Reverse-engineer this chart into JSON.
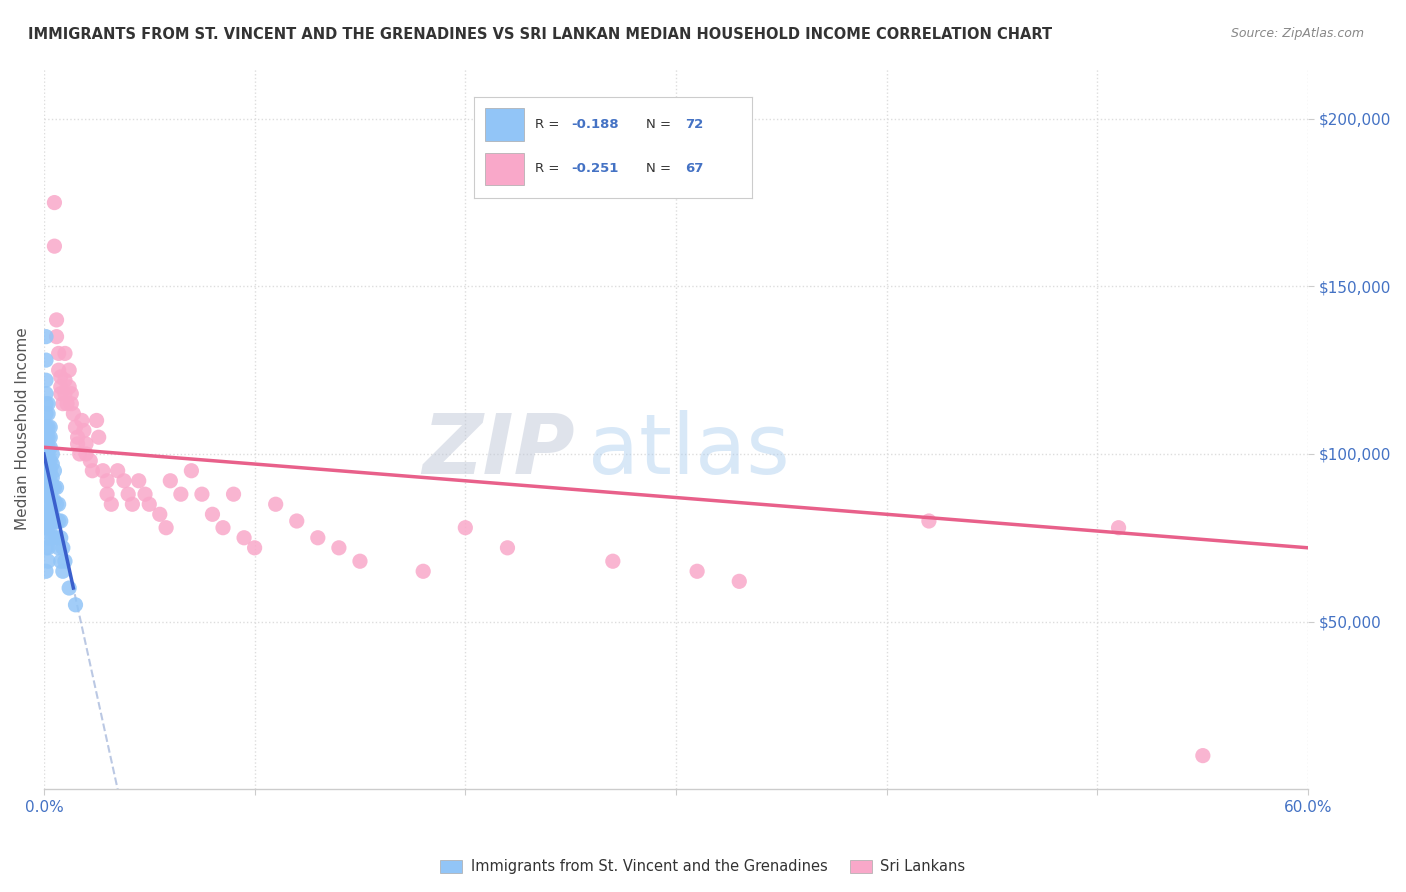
{
  "title": "IMMIGRANTS FROM ST. VINCENT AND THE GRENADINES VS SRI LANKAN MEDIAN HOUSEHOLD INCOME CORRELATION CHART",
  "source": "Source: ZipAtlas.com",
  "ylabel": "Median Household Income",
  "xlim": [
    0.0,
    0.6
  ],
  "ylim": [
    0,
    215000
  ],
  "R_blue": -0.188,
  "N_blue": 72,
  "R_pink": -0.251,
  "N_pink": 67,
  "blue_color": "#92C5F7",
  "blue_edge_color": "#6AAEE8",
  "pink_color": "#F9A8C9",
  "pink_edge_color": "#F080A8",
  "blue_line_color": "#3A5FCC",
  "pink_line_color": "#E8608A",
  "dashed_line_color": "#AABBDD",
  "background_color": "#FFFFFF",
  "grid_color": "#DDDDDD",
  "text_color": "#4472C4",
  "title_color": "#333333",
  "legend_label_blue": "Immigrants from St. Vincent and the Grenadines",
  "legend_label_pink": "Sri Lankans",
  "blue_x": [
    0.001,
    0.001,
    0.001,
    0.001,
    0.001,
    0.001,
    0.001,
    0.001,
    0.001,
    0.001,
    0.001,
    0.001,
    0.001,
    0.001,
    0.001,
    0.001,
    0.001,
    0.001,
    0.001,
    0.001,
    0.002,
    0.002,
    0.002,
    0.002,
    0.002,
    0.002,
    0.002,
    0.002,
    0.002,
    0.002,
    0.002,
    0.002,
    0.002,
    0.002,
    0.002,
    0.002,
    0.002,
    0.003,
    0.003,
    0.003,
    0.003,
    0.003,
    0.003,
    0.003,
    0.003,
    0.003,
    0.004,
    0.004,
    0.004,
    0.004,
    0.004,
    0.004,
    0.004,
    0.005,
    0.005,
    0.005,
    0.005,
    0.006,
    0.006,
    0.006,
    0.006,
    0.007,
    0.007,
    0.007,
    0.008,
    0.008,
    0.008,
    0.009,
    0.009,
    0.01,
    0.012,
    0.015
  ],
  "blue_y": [
    135000,
    128000,
    122000,
    118000,
    115000,
    112000,
    108000,
    105000,
    102000,
    100000,
    98000,
    96000,
    93000,
    90000,
    88000,
    85000,
    82000,
    78000,
    72000,
    65000,
    115000,
    112000,
    108000,
    105000,
    102000,
    100000,
    98000,
    95000,
    93000,
    90000,
    88000,
    85000,
    82000,
    78000,
    75000,
    72000,
    68000,
    108000,
    105000,
    102000,
    98000,
    95000,
    92000,
    88000,
    82000,
    78000,
    100000,
    97000,
    93000,
    90000,
    86000,
    82000,
    75000,
    95000,
    90000,
    86000,
    80000,
    90000,
    85000,
    80000,
    75000,
    85000,
    80000,
    72000,
    80000,
    75000,
    68000,
    72000,
    65000,
    68000,
    60000,
    55000
  ],
  "pink_x": [
    0.005,
    0.005,
    0.006,
    0.006,
    0.007,
    0.007,
    0.008,
    0.008,
    0.008,
    0.009,
    0.01,
    0.01,
    0.01,
    0.011,
    0.012,
    0.012,
    0.013,
    0.013,
    0.014,
    0.015,
    0.016,
    0.016,
    0.017,
    0.018,
    0.019,
    0.02,
    0.02,
    0.022,
    0.023,
    0.025,
    0.026,
    0.028,
    0.03,
    0.03,
    0.032,
    0.035,
    0.038,
    0.04,
    0.042,
    0.045,
    0.048,
    0.05,
    0.055,
    0.058,
    0.06,
    0.065,
    0.07,
    0.075,
    0.08,
    0.085,
    0.09,
    0.095,
    0.1,
    0.11,
    0.12,
    0.13,
    0.14,
    0.15,
    0.18,
    0.2,
    0.22,
    0.27,
    0.31,
    0.33,
    0.42,
    0.51,
    0.55
  ],
  "pink_y": [
    175000,
    162000,
    140000,
    135000,
    130000,
    125000,
    123000,
    120000,
    118000,
    115000,
    130000,
    122000,
    118000,
    115000,
    125000,
    120000,
    118000,
    115000,
    112000,
    108000,
    105000,
    103000,
    100000,
    110000,
    107000,
    103000,
    100000,
    98000,
    95000,
    110000,
    105000,
    95000,
    92000,
    88000,
    85000,
    95000,
    92000,
    88000,
    85000,
    92000,
    88000,
    85000,
    82000,
    78000,
    92000,
    88000,
    95000,
    88000,
    82000,
    78000,
    88000,
    75000,
    72000,
    85000,
    80000,
    75000,
    72000,
    68000,
    65000,
    78000,
    72000,
    68000,
    65000,
    62000,
    80000,
    78000,
    10000
  ]
}
